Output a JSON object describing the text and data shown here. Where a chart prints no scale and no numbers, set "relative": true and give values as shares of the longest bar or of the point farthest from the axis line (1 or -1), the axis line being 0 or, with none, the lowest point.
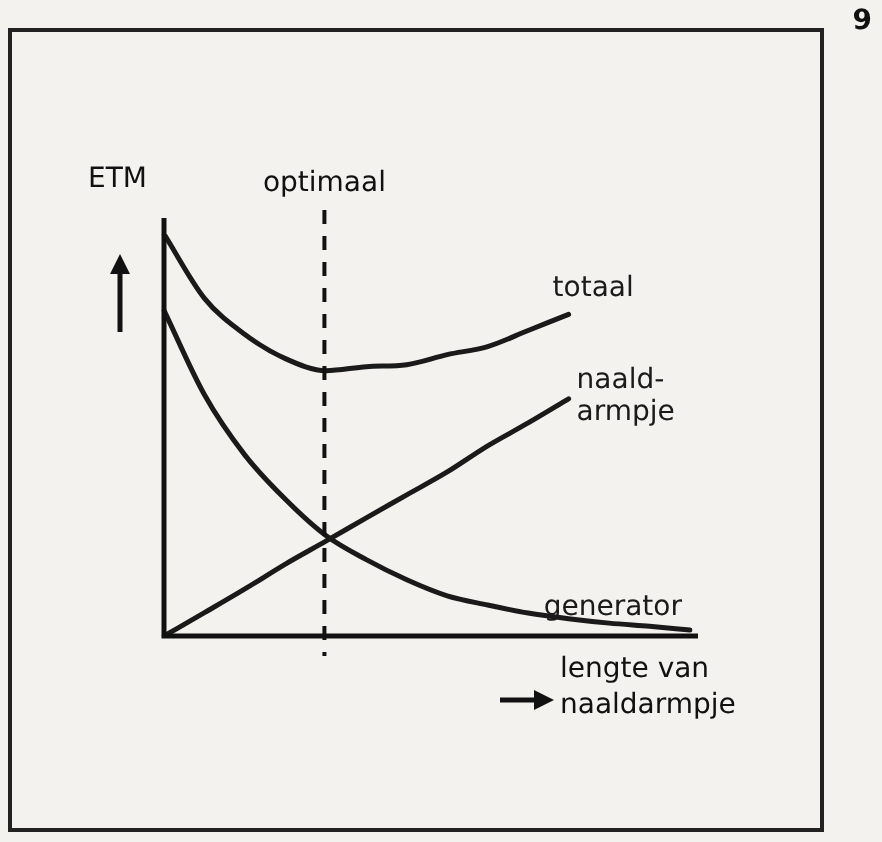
{
  "chart_data": {
    "type": "line",
    "relative": true,
    "ylabel": "ETM",
    "xlabel": "lengte van naaldarmpje",
    "categories": [
      null,
      null,
      null,
      null,
      null,
      null,
      null,
      null,
      null,
      null,
      null,
      null,
      null,
      null
    ],
    "series": [
      {
        "name": "totaal",
        "color": "#1a1a1a",
        "values": [
          1.0,
          0.84,
          0.75,
          0.69,
          0.66,
          0.67,
          0.675,
          0.7,
          0.72,
          0.76,
          0.8,
          null,
          null,
          null
        ]
      },
      {
        "name": "naald-armpje",
        "color": "#1a1a1a",
        "values": [
          0,
          0.058,
          0.117,
          0.179,
          0.236,
          0.294,
          0.351,
          0.408,
          0.473,
          0.53,
          0.59,
          null,
          null,
          null
        ]
      },
      {
        "name": "generator",
        "color": "#1a1a1a",
        "values": [
          0.81,
          0.6,
          0.45,
          0.34,
          0.25,
          0.19,
          0.14,
          0.1,
          0.077,
          0.057,
          0.043,
          0.032,
          0.024,
          0.015
        ]
      }
    ],
    "marker": "none",
    "line_style": "solid",
    "legend": false,
    "annotations": [
      "optimaal",
      "9"
    ]
  }
}
